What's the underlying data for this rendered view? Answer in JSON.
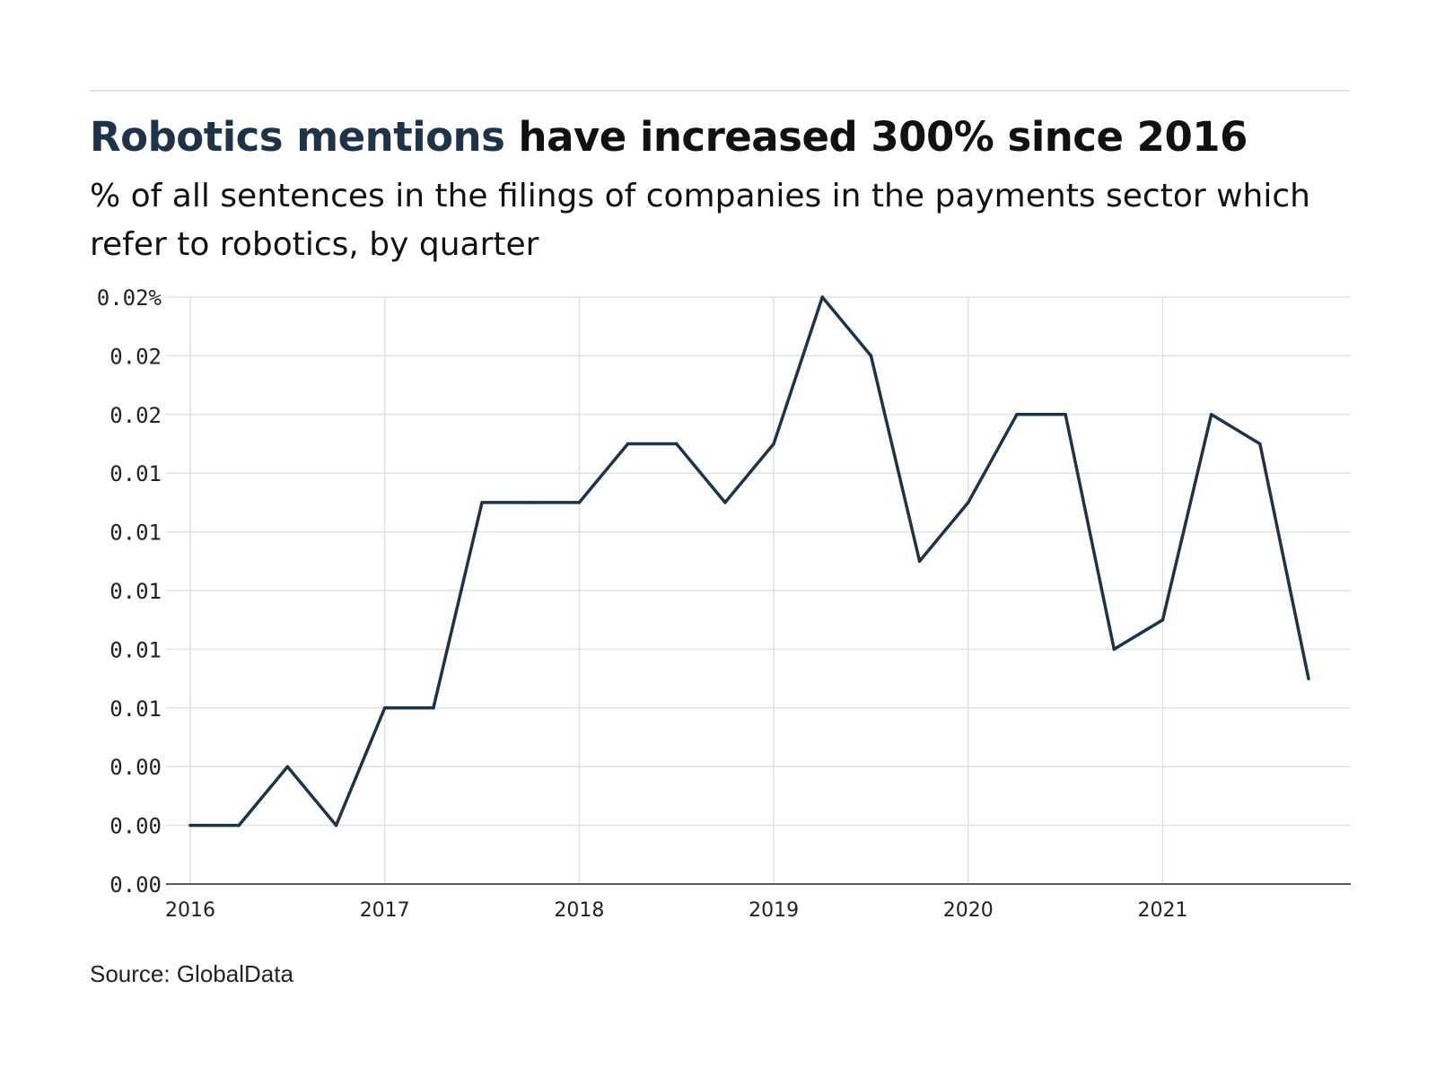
{
  "header": {
    "title_highlight": "Robotics mentions",
    "title_rest": " have increased 300% since 2016",
    "subtitle": "% of all sentences in the filings of companies in the payments sector which refer to robotics, by quarter"
  },
  "footer": {
    "source": "Source: GlobalData"
  },
  "colors": {
    "line": "#1d3347",
    "grid": "#e2e2e2",
    "axis": "#222222",
    "title_highlight": "#1d3347"
  },
  "chart_data": {
    "type": "line",
    "title": "Robotics mentions have increased 300% since 2016",
    "subtitle": "% of all sentences in the filings of companies in the payments sector which refer to robotics, by quarter",
    "xlabel": "",
    "ylabel": "",
    "x_ticks": [
      "2016",
      "2017",
      "2018",
      "2019",
      "2020",
      "2021"
    ],
    "y_ticks": [
      "0.00",
      "0.00",
      "0.00",
      "0.01",
      "0.01",
      "0.01",
      "0.01",
      "0.01",
      "0.02",
      "0.02",
      "0.02%"
    ],
    "ylim": [
      0,
      0.02
    ],
    "grid": true,
    "legend": "none",
    "series": [
      {
        "x": [
          "2016 Q1",
          "2016 Q2",
          "2016 Q3",
          "2016 Q4",
          "2017 Q1",
          "2017 Q2",
          "2017 Q3",
          "2017 Q4",
          "2018 Q1",
          "2018 Q2",
          "2018 Q3",
          "2018 Q4",
          "2019 Q1",
          "2019 Q2",
          "2019 Q3",
          "2019 Q4",
          "2020 Q1",
          "2020 Q2",
          "2020 Q3",
          "2020 Q4",
          "2021 Q1",
          "2021 Q2",
          "2021 Q3",
          "2021 Q4"
        ],
        "values": [
          0.002,
          0.002,
          0.004,
          0.002,
          0.006,
          0.006,
          0.013,
          0.013,
          0.013,
          0.015,
          0.015,
          0.013,
          0.015,
          0.02,
          0.018,
          0.011,
          0.013,
          0.016,
          0.016,
          0.008,
          0.009,
          0.016,
          0.015,
          0.007
        ]
      }
    ]
  }
}
